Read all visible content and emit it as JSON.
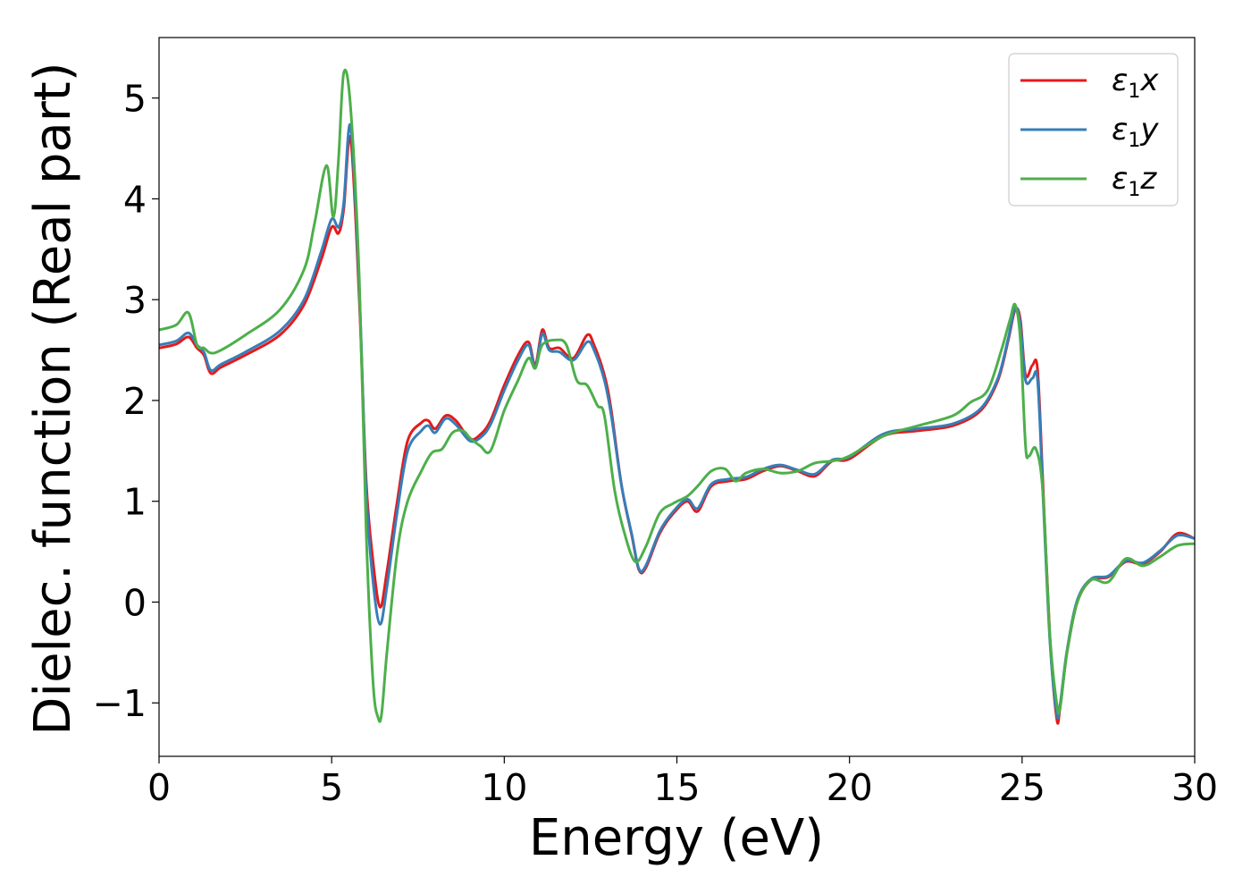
{
  "chart_data": {
    "type": "line",
    "title": "",
    "xlabel": "Energy (eV)",
    "ylabel": "Dielec. function (Real part)",
    "xlim": [
      0,
      30
    ],
    "ylim": [
      -1.53,
      5.6
    ],
    "xticks": [
      0,
      5,
      10,
      15,
      20,
      25,
      30
    ],
    "xtick_labels": [
      "0",
      "5",
      "10",
      "15",
      "20",
      "25",
      "30"
    ],
    "yticks": [
      -1,
      0,
      1,
      2,
      3,
      4,
      5
    ],
    "ytick_labels": [
      "−1",
      "0",
      "1",
      "2",
      "3",
      "4",
      "5"
    ],
    "grid": false,
    "legend_position": "top-right",
    "series": [
      {
        "name": "ε1x",
        "symbol": "ε",
        "sub": "1",
        "var": "x",
        "color": "#e41a1c",
        "x": [
          0,
          0.5,
          0.85,
          1.1,
          1.3,
          1.5,
          1.8,
          2.5,
          3.5,
          4.2,
          4.7,
          5.0,
          5.2,
          5.35,
          5.55,
          5.8,
          6.0,
          6.2,
          6.4,
          6.6,
          6.9,
          7.2,
          7.6,
          7.8,
          8.0,
          8.3,
          8.6,
          9.0,
          9.3,
          9.6,
          10.0,
          10.4,
          10.7,
          10.9,
          11.1,
          11.3,
          11.6,
          12.0,
          12.4,
          12.6,
          12.9,
          13.1,
          13.4,
          13.7,
          13.9,
          14.1,
          14.5,
          14.9,
          15.3,
          15.6,
          16.0,
          16.5,
          17.0,
          17.5,
          18.0,
          18.5,
          19.0,
          19.5,
          20.0,
          21.0,
          22.0,
          23.0,
          23.8,
          24.3,
          24.6,
          24.8,
          24.95,
          25.1,
          25.3,
          25.45,
          25.6,
          25.8,
          26.0,
          26.1,
          26.3,
          26.6,
          27.0,
          27.5,
          28.0,
          28.5,
          29.0,
          29.5,
          30.0
        ],
        "y": [
          2.52,
          2.56,
          2.63,
          2.52,
          2.45,
          2.27,
          2.33,
          2.45,
          2.65,
          2.95,
          3.4,
          3.72,
          3.66,
          3.9,
          4.6,
          3.0,
          1.2,
          0.4,
          -0.05,
          0.3,
          1.0,
          1.6,
          1.78,
          1.8,
          1.72,
          1.85,
          1.8,
          1.62,
          1.66,
          1.8,
          2.15,
          2.45,
          2.58,
          2.35,
          2.7,
          2.52,
          2.52,
          2.42,
          2.65,
          2.55,
          2.25,
          1.9,
          1.15,
          0.65,
          0.32,
          0.34,
          0.68,
          0.88,
          1.0,
          0.9,
          1.15,
          1.2,
          1.22,
          1.3,
          1.35,
          1.3,
          1.25,
          1.4,
          1.42,
          1.65,
          1.7,
          1.75,
          1.9,
          2.2,
          2.6,
          2.9,
          2.8,
          2.25,
          2.35,
          2.3,
          1.2,
          -0.3,
          -1.15,
          -1.05,
          -0.5,
          0.0,
          0.22,
          0.25,
          0.4,
          0.38,
          0.5,
          0.68,
          0.63
        ]
      },
      {
        "name": "ε1y",
        "symbol": "ε",
        "sub": "1",
        "var": "y",
        "color": "#377eb8",
        "x": [
          0,
          0.5,
          0.85,
          1.1,
          1.3,
          1.5,
          1.8,
          2.5,
          3.5,
          4.2,
          4.7,
          5.0,
          5.2,
          5.35,
          5.55,
          5.8,
          6.0,
          6.2,
          6.4,
          6.6,
          6.9,
          7.2,
          7.6,
          7.8,
          8.0,
          8.3,
          8.6,
          9.0,
          9.3,
          9.6,
          10.0,
          10.4,
          10.7,
          10.9,
          11.1,
          11.3,
          11.6,
          12.0,
          12.4,
          12.6,
          12.9,
          13.1,
          13.4,
          13.7,
          13.9,
          14.1,
          14.5,
          14.9,
          15.3,
          15.6,
          16.0,
          16.5,
          17.0,
          17.5,
          18.0,
          18.5,
          19.0,
          19.5,
          20.0,
          21.0,
          22.0,
          23.0,
          23.8,
          24.3,
          24.6,
          24.8,
          24.95,
          25.1,
          25.3,
          25.45,
          25.6,
          25.8,
          26.0,
          26.1,
          26.3,
          26.6,
          27.0,
          27.5,
          28.0,
          28.5,
          29.0,
          29.5,
          30.0
        ],
        "y": [
          2.55,
          2.59,
          2.67,
          2.55,
          2.48,
          2.3,
          2.36,
          2.48,
          2.69,
          3.0,
          3.48,
          3.8,
          3.72,
          3.96,
          4.72,
          3.1,
          1.1,
          0.2,
          -0.22,
          0.15,
          0.9,
          1.5,
          1.7,
          1.75,
          1.68,
          1.82,
          1.76,
          1.6,
          1.63,
          1.76,
          2.1,
          2.4,
          2.55,
          2.33,
          2.66,
          2.5,
          2.48,
          2.4,
          2.58,
          2.5,
          2.2,
          1.85,
          1.15,
          0.66,
          0.33,
          0.36,
          0.7,
          0.9,
          1.02,
          0.93,
          1.17,
          1.22,
          1.24,
          1.32,
          1.36,
          1.31,
          1.27,
          1.41,
          1.44,
          1.67,
          1.72,
          1.77,
          1.92,
          2.22,
          2.62,
          2.92,
          2.75,
          2.2,
          2.22,
          2.2,
          1.1,
          -0.35,
          -1.1,
          -1.02,
          -0.48,
          0.02,
          0.23,
          0.26,
          0.41,
          0.39,
          0.51,
          0.66,
          0.63
        ]
      },
      {
        "name": "ε1z",
        "symbol": "ε",
        "sub": "1",
        "var": "z",
        "color": "#4daf4a",
        "x": [
          0,
          0.5,
          0.85,
          1.1,
          1.3,
          1.5,
          1.8,
          2.5,
          3.5,
          4.2,
          4.5,
          4.85,
          5.05,
          5.2,
          5.35,
          5.55,
          5.8,
          6.0,
          6.2,
          6.35,
          6.45,
          6.6,
          6.9,
          7.2,
          7.6,
          7.9,
          8.2,
          8.5,
          8.8,
          9.0,
          9.3,
          9.6,
          10.0,
          10.4,
          10.7,
          10.9,
          11.1,
          11.5,
          11.8,
          12.1,
          12.4,
          12.7,
          12.9,
          13.2,
          13.5,
          13.8,
          14.1,
          14.5,
          14.9,
          15.3,
          15.6,
          16.0,
          16.4,
          16.7,
          17.0,
          17.5,
          18.0,
          18.5,
          19.0,
          19.5,
          20.0,
          21.0,
          22.0,
          23.0,
          23.5,
          24.0,
          24.4,
          24.65,
          24.8,
          24.95,
          25.1,
          25.2,
          25.4,
          25.6,
          25.8,
          26.0,
          26.1,
          26.3,
          26.6,
          27.0,
          27.5,
          28.0,
          28.5,
          29.0,
          29.5,
          30.0
        ],
        "y": [
          2.7,
          2.75,
          2.87,
          2.55,
          2.52,
          2.47,
          2.5,
          2.65,
          2.9,
          3.3,
          3.75,
          4.33,
          3.82,
          4.4,
          5.25,
          4.9,
          3.2,
          0.7,
          -0.8,
          -1.15,
          -1.1,
          -0.5,
          0.5,
          1.0,
          1.3,
          1.48,
          1.52,
          1.68,
          1.7,
          1.63,
          1.55,
          1.5,
          1.9,
          2.2,
          2.42,
          2.32,
          2.55,
          2.6,
          2.55,
          2.2,
          2.15,
          1.95,
          1.85,
          1.1,
          0.66,
          0.4,
          0.55,
          0.88,
          0.98,
          1.05,
          1.15,
          1.3,
          1.32,
          1.2,
          1.28,
          1.32,
          1.28,
          1.3,
          1.38,
          1.4,
          1.45,
          1.65,
          1.75,
          1.85,
          1.98,
          2.1,
          2.5,
          2.8,
          2.95,
          2.6,
          1.55,
          1.45,
          1.52,
          1.1,
          -0.3,
          -1.0,
          -1.05,
          -0.5,
          0.0,
          0.22,
          0.2,
          0.43,
          0.36,
          0.45,
          0.56,
          0.58
        ]
      }
    ]
  }
}
